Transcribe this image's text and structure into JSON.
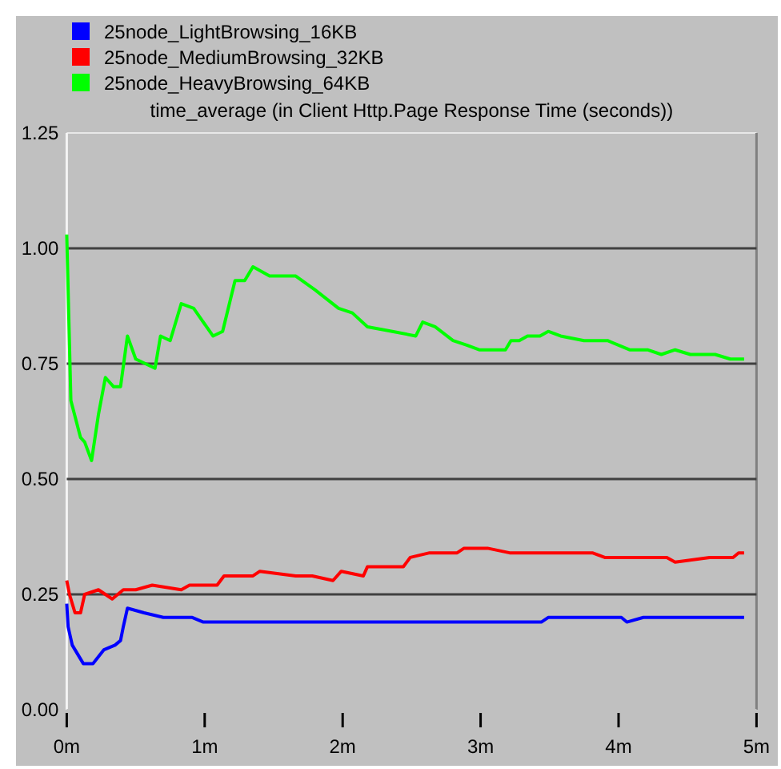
{
  "chart_data": {
    "type": "line",
    "title": "time_average (in Client Http.Page Response Time (seconds))",
    "xlim": [
      0,
      5
    ],
    "xticks": [
      {
        "value": 0,
        "label": "0m"
      },
      {
        "value": 1,
        "label": "1m"
      },
      {
        "value": 2,
        "label": "2m"
      },
      {
        "value": 3,
        "label": "3m"
      },
      {
        "value": 4,
        "label": "4m"
      },
      {
        "value": 5,
        "label": "5m"
      }
    ],
    "ylim": [
      0,
      1.25
    ],
    "yticks": [
      {
        "value": 0,
        "label": "0.00"
      },
      {
        "value": 0.25,
        "label": "0.25"
      },
      {
        "value": 0.5,
        "label": "0.50"
      },
      {
        "value": 0.75,
        "label": "0.75"
      },
      {
        "value": 1,
        "label": "1.00"
      },
      {
        "value": 1.25,
        "label": "1.25"
      }
    ],
    "grid": "y",
    "legend": "top left",
    "marker": "none",
    "line_style": "solid",
    "series": [
      {
        "name": "25node_LightBrowsing_16KB",
        "color": "#0000ff",
        "x": [
          0,
          0.01,
          0.04,
          0.12,
          0.19,
          0.27,
          0.35,
          0.39,
          0.41,
          0.44,
          0.56,
          0.7,
          0.83,
          0.91,
          0.99,
          1.49,
          1.64,
          2.53,
          2.57,
          2.78,
          3.44,
          3.49,
          3.73,
          4.02,
          4.06,
          4.18,
          4.43,
          4.52,
          4.91
        ],
        "values": [
          0.23,
          0.18,
          0.14,
          0.1,
          0.1,
          0.13,
          0.14,
          0.15,
          0.18,
          0.22,
          0.21,
          0.2,
          0.2,
          0.2,
          0.19,
          0.19,
          0.19,
          0.19,
          0.19,
          0.19,
          0.19,
          0.2,
          0.2,
          0.2,
          0.19,
          0.2,
          0.2,
          0.2,
          0.2
        ]
      },
      {
        "name": "25node_MediumBrowsing_32KB",
        "color": "#ff0000",
        "x": [
          0,
          0.02,
          0.06,
          0.1,
          0.13,
          0.23,
          0.33,
          0.41,
          0.5,
          0.62,
          0.83,
          0.89,
          1.09,
          1.14,
          1.35,
          1.4,
          1.66,
          1.78,
          1.93,
          1.99,
          2.15,
          2.18,
          2.44,
          2.49,
          2.63,
          2.83,
          2.88,
          3.05,
          3.21,
          3.36,
          3.81,
          3.9,
          4.0,
          4.04,
          4.08,
          4.35,
          4.41,
          4.66,
          4.7,
          4.83,
          4.87,
          4.91
        ],
        "values": [
          0.28,
          0.25,
          0.21,
          0.21,
          0.25,
          0.26,
          0.24,
          0.26,
          0.26,
          0.27,
          0.26,
          0.27,
          0.27,
          0.29,
          0.29,
          0.3,
          0.29,
          0.29,
          0.28,
          0.3,
          0.29,
          0.31,
          0.31,
          0.33,
          0.34,
          0.34,
          0.35,
          0.35,
          0.34,
          0.34,
          0.34,
          0.33,
          0.33,
          0.33,
          0.33,
          0.33,
          0.32,
          0.33,
          0.33,
          0.33,
          0.34,
          0.34
        ]
      },
      {
        "name": "25node_HeavyBrowsing_64KB",
        "color": "#00ff00",
        "x": [
          0,
          0.02,
          0.03,
          0.1,
          0.13,
          0.18,
          0.23,
          0.28,
          0.34,
          0.39,
          0.44,
          0.5,
          0.57,
          0.64,
          0.68,
          0.75,
          0.83,
          0.92,
          1.06,
          1.13,
          1.22,
          1.29,
          1.35,
          1.47,
          1.66,
          1.8,
          1.97,
          2.07,
          2.18,
          2.36,
          2.53,
          2.58,
          2.67,
          2.8,
          2.9,
          2.99,
          3.18,
          3.22,
          3.28,
          3.34,
          3.43,
          3.49,
          3.58,
          3.75,
          3.92,
          4.08,
          4.21,
          4.31,
          4.41,
          4.52,
          4.7,
          4.81,
          4.91
        ],
        "values": [
          1.03,
          0.79,
          0.67,
          0.59,
          0.58,
          0.54,
          0.64,
          0.72,
          0.7,
          0.7,
          0.81,
          0.76,
          0.75,
          0.74,
          0.81,
          0.8,
          0.88,
          0.87,
          0.81,
          0.82,
          0.93,
          0.93,
          0.96,
          0.94,
          0.94,
          0.91,
          0.87,
          0.86,
          0.83,
          0.82,
          0.81,
          0.84,
          0.83,
          0.8,
          0.79,
          0.78,
          0.78,
          0.8,
          0.8,
          0.81,
          0.81,
          0.82,
          0.81,
          0.8,
          0.8,
          0.78,
          0.78,
          0.77,
          0.78,
          0.77,
          0.77,
          0.76,
          0.76
        ]
      }
    ]
  }
}
